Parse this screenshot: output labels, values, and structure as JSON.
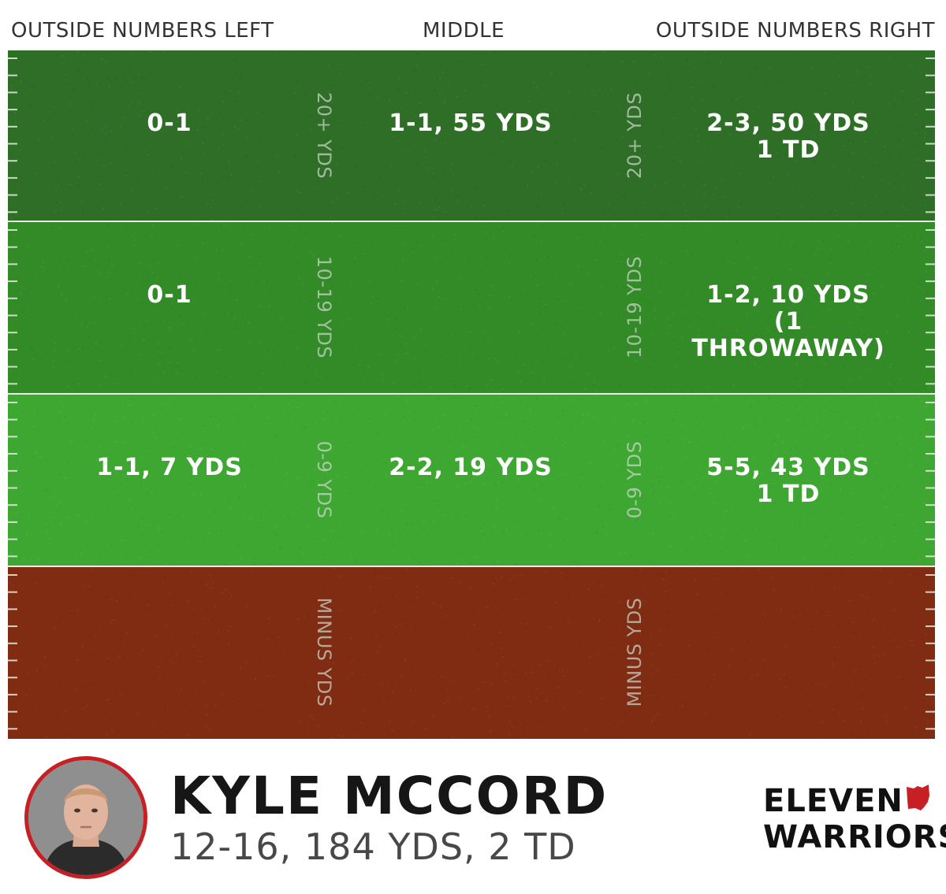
{
  "columns": {
    "left": "OUTSIDE NUMBERS LEFT",
    "middle": "MIDDLE",
    "right": "OUTSIDE NUMBERS RIGHT"
  },
  "zones": [
    {
      "label": "20+ YDS",
      "color": "#2f6e26",
      "left": "0-1",
      "middle": "1-1, 55 YDS",
      "right_line1": "2-3, 50 YDS",
      "right_line2": "1 TD"
    },
    {
      "label": "10-19 YDS",
      "color": "#338b27",
      "left": "0-1",
      "middle": "",
      "right_line1": "1-2, 10 YDS",
      "right_line2": "(1 THROWAWAY)"
    },
    {
      "label": "0-9 YDS",
      "color": "#3ea731",
      "left": "1-1, 7 YDS",
      "middle": "2-2, 19 YDS",
      "right_line1": "5-5, 43 YDS",
      "right_line2": "1 TD"
    },
    {
      "label": "MINUS YDS",
      "color": "#7f2c12",
      "left": "",
      "middle": "",
      "right_line1": "",
      "right_line2": ""
    }
  ],
  "player": {
    "name": "KYLE MCCORD",
    "stat_line": "12-16, 184 YDS, 2 TD"
  },
  "brand": {
    "line1": "ELEVEN",
    "line2": "WARRIORS",
    "accent_color": "#c81f24"
  }
}
